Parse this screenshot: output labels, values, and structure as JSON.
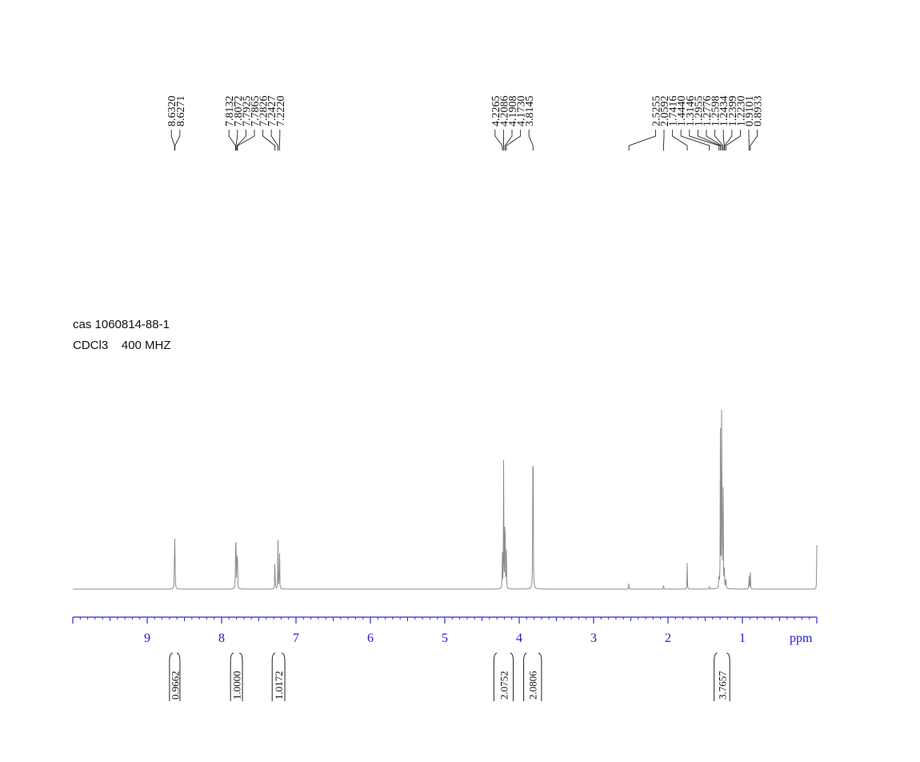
{
  "chart_data": {
    "type": "line",
    "xlabel": "ppm",
    "xlim": [
      10,
      0
    ],
    "x_ticks": [
      9,
      8,
      7,
      6,
      5,
      4,
      3,
      2,
      1
    ],
    "x_ticks_labels": [
      "9",
      "8",
      "7",
      "6",
      "5",
      "4",
      "3",
      "2",
      "1"
    ],
    "grid": false,
    "sample": "cas 1060814-88-1",
    "solvent": "CDCl3",
    "frequency": "400 MHZ",
    "peak_labels": [
      {
        "text": "8.6320",
        "ppm": 8.632
      },
      {
        "text": "8.6271",
        "ppm": 8.6271
      },
      {
        "text": "7.8132",
        "ppm": 7.8132
      },
      {
        "text": "7.8072",
        "ppm": 7.8072
      },
      {
        "text": "7.7925",
        "ppm": 7.7925
      },
      {
        "text": "7.7865",
        "ppm": 7.7865
      },
      {
        "text": "7.2826",
        "ppm": 7.2826
      },
      {
        "text": "7.2427",
        "ppm": 7.2427
      },
      {
        "text": "7.2220",
        "ppm": 7.222
      },
      {
        "text": "4.2265",
        "ppm": 4.2265
      },
      {
        "text": "4.2086",
        "ppm": 4.2086
      },
      {
        "text": "4.1908",
        "ppm": 4.1908
      },
      {
        "text": "4.1730",
        "ppm": 4.173
      },
      {
        "text": "3.8145",
        "ppm": 3.8145
      },
      {
        "text": "2.5255",
        "ppm": 2.5255
      },
      {
        "text": "2.0592",
        "ppm": 2.0592
      },
      {
        "text": "1.7416",
        "ppm": 1.7416
      },
      {
        "text": "1.4440",
        "ppm": 1.444
      },
      {
        "text": "1.3146",
        "ppm": 1.3146
      },
      {
        "text": "1.2955",
        "ppm": 1.2955
      },
      {
        "text": "1.2776",
        "ppm": 1.2776
      },
      {
        "text": "1.2598",
        "ppm": 1.2598
      },
      {
        "text": "1.2434",
        "ppm": 1.2434
      },
      {
        "text": "1.2399",
        "ppm": 1.2399
      },
      {
        "text": "1.2230",
        "ppm": 1.223
      },
      {
        "text": "0.9101",
        "ppm": 0.9101
      },
      {
        "text": "0.8933",
        "ppm": 0.8933
      }
    ],
    "peaks": [
      {
        "ppm": 8.632,
        "intensity": 0.18
      },
      {
        "ppm": 8.627,
        "intensity": 0.18
      },
      {
        "ppm": 7.813,
        "intensity": 0.13
      },
      {
        "ppm": 7.807,
        "intensity": 0.14
      },
      {
        "ppm": 7.793,
        "intensity": 0.15
      },
      {
        "ppm": 7.787,
        "intensity": 0.14
      },
      {
        "ppm": 7.283,
        "intensity": 0.14
      },
      {
        "ppm": 7.243,
        "intensity": 0.19
      },
      {
        "ppm": 7.222,
        "intensity": 0.17
      },
      {
        "ppm": 4.227,
        "intensity": 0.14
      },
      {
        "ppm": 4.209,
        "intensity": 0.44
      },
      {
        "ppm": 4.191,
        "intensity": 0.44
      },
      {
        "ppm": 4.173,
        "intensity": 0.14
      },
      {
        "ppm": 3.8145,
        "intensity": 0.97
      },
      {
        "ppm": 2.5255,
        "intensity": 0.025
      },
      {
        "ppm": 2.0592,
        "intensity": 0.012
      },
      {
        "ppm": 1.7416,
        "intensity": 0.085
      },
      {
        "ppm": 1.444,
        "intensity": 0.015
      },
      {
        "ppm": 1.3146,
        "intensity": 0.07
      },
      {
        "ppm": 1.2955,
        "intensity": 0.5
      },
      {
        "ppm": 1.2776,
        "intensity": 1.0
      },
      {
        "ppm": 1.2598,
        "intensity": 0.5
      },
      {
        "ppm": 1.2434,
        "intensity": 0.08
      },
      {
        "ppm": 1.223,
        "intensity": 0.06
      },
      {
        "ppm": 0.9101,
        "intensity": 0.06
      },
      {
        "ppm": 0.8933,
        "intensity": 0.06
      },
      {
        "ppm": 0.0,
        "intensity": 0.14
      }
    ],
    "integrals": [
      {
        "text": "0.9662",
        "from": 8.7,
        "to": 8.56
      },
      {
        "text": "1.0000",
        "from": 7.88,
        "to": 7.72
      },
      {
        "text": "1.0172",
        "from": 7.32,
        "to": 7.15
      },
      {
        "text": "2.0752",
        "from": 4.34,
        "to": 4.08
      },
      {
        "text": "2.0806",
        "from": 3.94,
        "to": 3.7
      },
      {
        "text": "3.7657",
        "from": 1.38,
        "to": 1.17
      }
    ]
  }
}
